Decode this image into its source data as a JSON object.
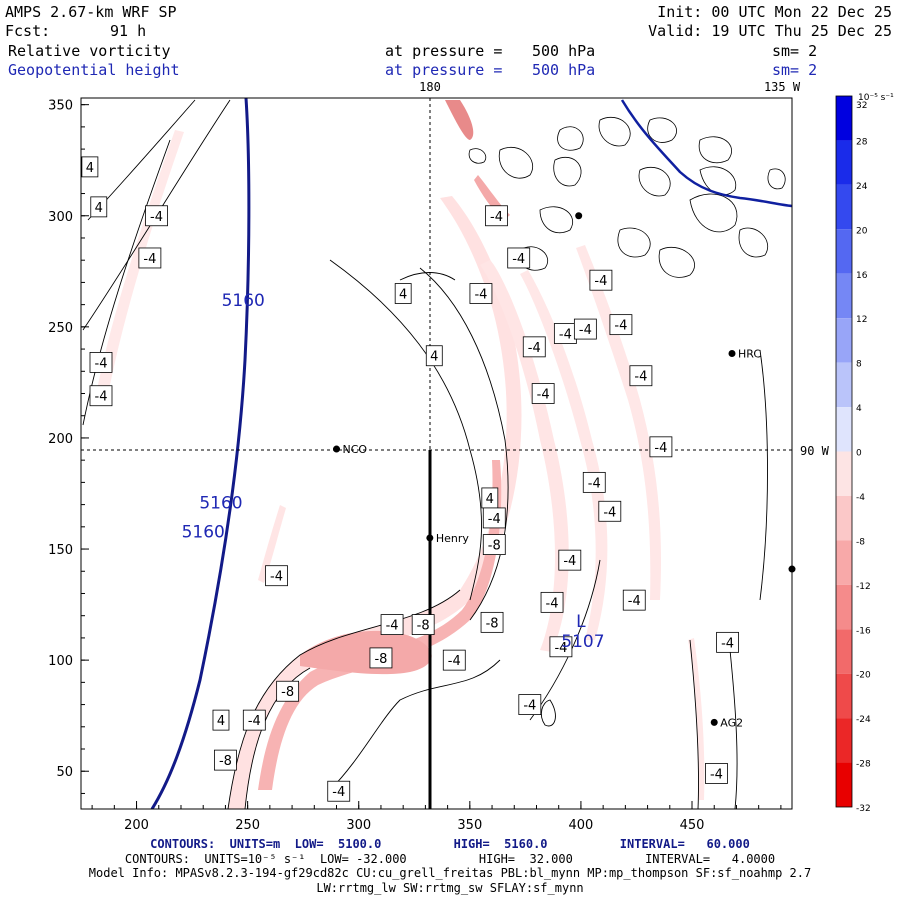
{
  "header": {
    "model": "AMPS 2.67-km WRF SP",
    "forecast_label": "Fcst:",
    "forecast_hours": "91 h",
    "init": "Init: 00 UTC Mon 22 Dec 25",
    "valid": "Valid: 19 UTC Thu 25 Dec 25"
  },
  "fields": [
    {
      "name": "Relative vorticity",
      "level_label": "at pressure =",
      "level": "500 hPa",
      "smooth": "sm= 2",
      "color": "#000000"
    },
    {
      "name": "Geopotential height",
      "level_label": "at pressure =",
      "level": "500 hPa",
      "smooth": "sm= 2",
      "color": "#1f28b4"
    }
  ],
  "map": {
    "x_ticks": [
      "200",
      "250",
      "300",
      "350",
      "400",
      "450"
    ],
    "y_ticks": [
      "350",
      "300",
      "250",
      "200",
      "150",
      "100",
      "50"
    ],
    "meridian_label": "180",
    "meridian_label_2": "135 W",
    "parallel_label": "90 W",
    "stations": [
      {
        "name": "NCO",
        "x": 290,
        "y": 195
      },
      {
        "name": "Henry",
        "x": 332,
        "y": 155
      },
      {
        "name": "HRC",
        "x": 468,
        "y": 238
      },
      {
        "name": "AG2",
        "x": 460,
        "y": 72
      },
      {
        "name": "",
        "x": 495,
        "y": 141
      },
      {
        "name": "",
        "x": 399,
        "y": 300
      }
    ],
    "height_labels": [
      {
        "text": "5160",
        "x": 248,
        "y": 262
      },
      {
        "text": "5160",
        "x": 238,
        "y": 171
      },
      {
        "text": "5160",
        "x": 230,
        "y": 158
      }
    ],
    "low_center": {
      "symbol": "L",
      "value": "5107",
      "x": 400,
      "y": 115
    },
    "vorticity_labels": [
      {
        "text": "4",
        "x": 179,
        "y": 322
      },
      {
        "text": "4",
        "x": 183,
        "y": 304
      },
      {
        "text": "-4",
        "x": 209,
        "y": 300
      },
      {
        "text": "-4",
        "x": 206,
        "y": 281
      },
      {
        "text": "-4",
        "x": 184,
        "y": 234
      },
      {
        "text": "-4",
        "x": 184,
        "y": 219
      },
      {
        "text": "4",
        "x": 320,
        "y": 265
      },
      {
        "text": "4",
        "x": 334,
        "y": 237
      },
      {
        "text": "-4",
        "x": 362,
        "y": 300
      },
      {
        "text": "-4",
        "x": 372,
        "y": 281
      },
      {
        "text": "-4",
        "x": 355,
        "y": 265
      },
      {
        "text": "-4",
        "x": 409,
        "y": 271
      },
      {
        "text": "-4",
        "x": 393,
        "y": 247
      },
      {
        "text": "-4",
        "x": 418,
        "y": 251
      },
      {
        "text": "-4",
        "x": 402,
        "y": 249
      },
      {
        "text": "-4",
        "x": 379,
        "y": 241
      },
      {
        "text": "-4",
        "x": 427,
        "y": 228
      },
      {
        "text": "-4",
        "x": 383,
        "y": 220
      },
      {
        "text": "-4",
        "x": 436,
        "y": 196
      },
      {
        "text": "4",
        "x": 359,
        "y": 173
      },
      {
        "text": "-4",
        "x": 406,
        "y": 180
      },
      {
        "text": "-4",
        "x": 413,
        "y": 167
      },
      {
        "text": "-4",
        "x": 361,
        "y": 164
      },
      {
        "text": "-8",
        "x": 361,
        "y": 152
      },
      {
        "text": "-4",
        "x": 395,
        "y": 145
      },
      {
        "text": "-4",
        "x": 263,
        "y": 138
      },
      {
        "text": "-4",
        "x": 387,
        "y": 126
      },
      {
        "text": "-4",
        "x": 424,
        "y": 127
      },
      {
        "text": "-4",
        "x": 315,
        "y": 116
      },
      {
        "text": "-8",
        "x": 329,
        "y": 116
      },
      {
        "text": "-8",
        "x": 360,
        "y": 117
      },
      {
        "text": "-8",
        "x": 310,
        "y": 101
      },
      {
        "text": "-4",
        "x": 343,
        "y": 100
      },
      {
        "text": "-4",
        "x": 391,
        "y": 106
      },
      {
        "text": "-4",
        "x": 466,
        "y": 108
      },
      {
        "text": "-8",
        "x": 268,
        "y": 86
      },
      {
        "text": "4",
        "x": 238,
        "y": 73
      },
      {
        "text": "-4",
        "x": 253,
        "y": 73
      },
      {
        "text": "-4",
        "x": 377,
        "y": 80
      },
      {
        "text": "-8",
        "x": 240,
        "y": 55
      },
      {
        "text": "-4",
        "x": 461,
        "y": 49
      },
      {
        "text": "-4",
        "x": 291,
        "y": 41
      }
    ]
  },
  "colorbar": {
    "unit_label": "10⁻⁵ s⁻¹",
    "ticks": [
      "32",
      "28",
      "24",
      "20",
      "16",
      "12",
      "8",
      "4",
      "0",
      "-4",
      "-8",
      "-12",
      "-16",
      "-20",
      "-24",
      "-28",
      "-32"
    ]
  },
  "footer": {
    "contours_height": "CONTOURS:  UNITS=m  LOW=  5100.0          HIGH=  5160.0          INTERVAL=   60.000",
    "contours_vort": "CONTOURS:  UNITS=10⁻⁵ s⁻¹  LOW= -32.000          HIGH=  32.000          INTERVAL=   4.0000",
    "model_info": "Model Info: MPASv8.2.3-194-gf29cd82c CU:cu_grell_freitas PBL:bl_mynn MP:mp_thompson SF:sf_noahmp 2.7",
    "model_info_2": "LW:rrtmg_lw SW:rrtmg_sw SFLAY:sf_mynn"
  }
}
